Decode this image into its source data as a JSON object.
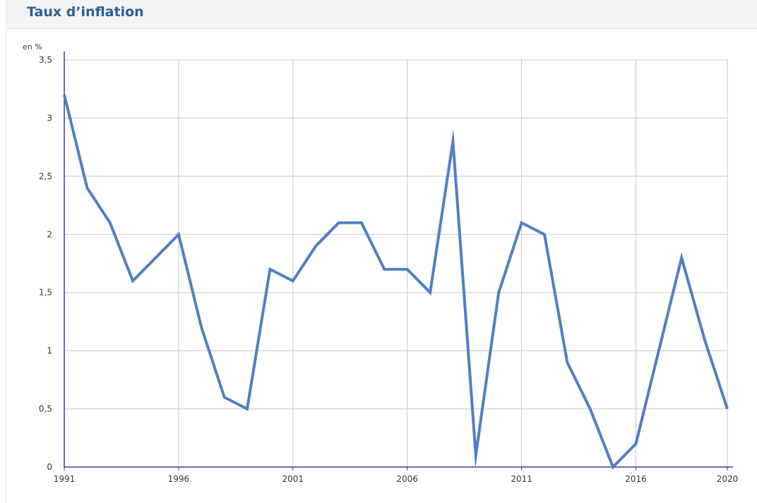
{
  "chart_data": {
    "type": "line",
    "title": "Taux d’inflation",
    "ylabel": "en %",
    "xlabel": "",
    "xlim": [
      1991,
      2020
    ],
    "ylim": [
      0,
      3.5
    ],
    "grid": true,
    "x_ticks": [
      1991,
      1996,
      2001,
      2006,
      2011,
      2016,
      2020
    ],
    "x_tick_labels": [
      "1991",
      "1996",
      "2001",
      "2006",
      "2011",
      "2016",
      "2020"
    ],
    "y_ticks": [
      0,
      0.5,
      1,
      1.5,
      2,
      2.5,
      3,
      3.5
    ],
    "y_tick_labels": [
      "0",
      "0,5",
      "1",
      "1,5",
      "2",
      "2,5",
      "3",
      "3,5"
    ],
    "series": [
      {
        "color": "#4f7fc5",
        "x": [
          1991,
          1992,
          1993,
          1994,
          1995,
          1996,
          1997,
          1998,
          1999,
          2000,
          2001,
          2002,
          2003,
          2004,
          2005,
          2006,
          2007,
          2008,
          2009,
          2010,
          2011,
          2012,
          2013,
          2014,
          2015,
          2016,
          2017,
          2018,
          2019,
          2020
        ],
        "values": [
          3.2,
          2.4,
          2.1,
          1.6,
          1.8,
          2.0,
          1.2,
          0.6,
          0.5,
          1.7,
          1.6,
          1.9,
          2.1,
          2.1,
          1.7,
          1.7,
          1.5,
          2.8,
          0.1,
          1.5,
          2.1,
          2.0,
          0.9,
          0.5,
          0.0,
          0.2,
          1.0,
          1.8,
          1.1,
          0.5
        ]
      }
    ]
  },
  "colors": {
    "title": "#2f5f93",
    "axis": "#3b3b9a",
    "grid": "#c8c8c8",
    "line": "#4f7fc5"
  }
}
